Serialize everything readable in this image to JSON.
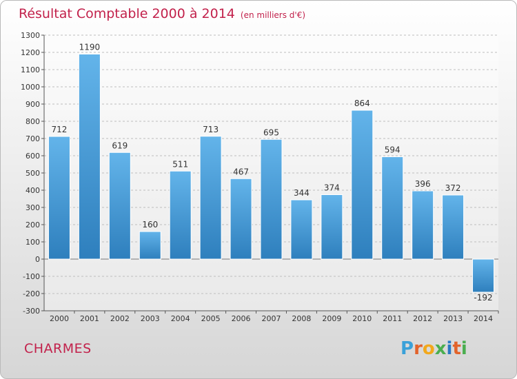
{
  "page": {
    "title": "Résultat Comptable 2000 à 2014",
    "subtitle": "(en milliers d'€)",
    "city": "CHARMES",
    "logo": [
      "P",
      "r",
      "o",
      "x",
      "i",
      "t",
      "i"
    ]
  },
  "colors": {
    "title": "#c2214b",
    "bar_light": "#63b4ea",
    "bar_dark": "#2e7fbd",
    "logo": [
      "#3aa1d9",
      "#e2632b",
      "#f2a81c",
      "#4aae4f",
      "#2a79c4",
      "#e2632b",
      "#4aae4f"
    ]
  },
  "chart_data": {
    "type": "bar",
    "categories": [
      "2000",
      "2001",
      "2002",
      "2003",
      "2004",
      "2005",
      "2006",
      "2007",
      "2008",
      "2009",
      "2010",
      "2011",
      "2012",
      "2013",
      "2014"
    ],
    "values": [
      712,
      1190,
      619,
      160,
      511,
      713,
      467,
      695,
      344,
      374,
      864,
      594,
      396,
      372,
      -192
    ],
    "data_labels": [
      "712",
      "1190",
      "619",
      "160",
      "511",
      "713",
      "467",
      "695",
      "344",
      "374",
      "864",
      "594",
      "396",
      "372",
      "-192"
    ],
    "y_ticks": [
      1300,
      1200,
      1100,
      1000,
      900,
      800,
      700,
      600,
      500,
      400,
      300,
      200,
      100,
      0,
      -100,
      -200,
      -300
    ],
    "ylim": [
      -300,
      1300
    ],
    "grid": true,
    "legend": "none"
  }
}
